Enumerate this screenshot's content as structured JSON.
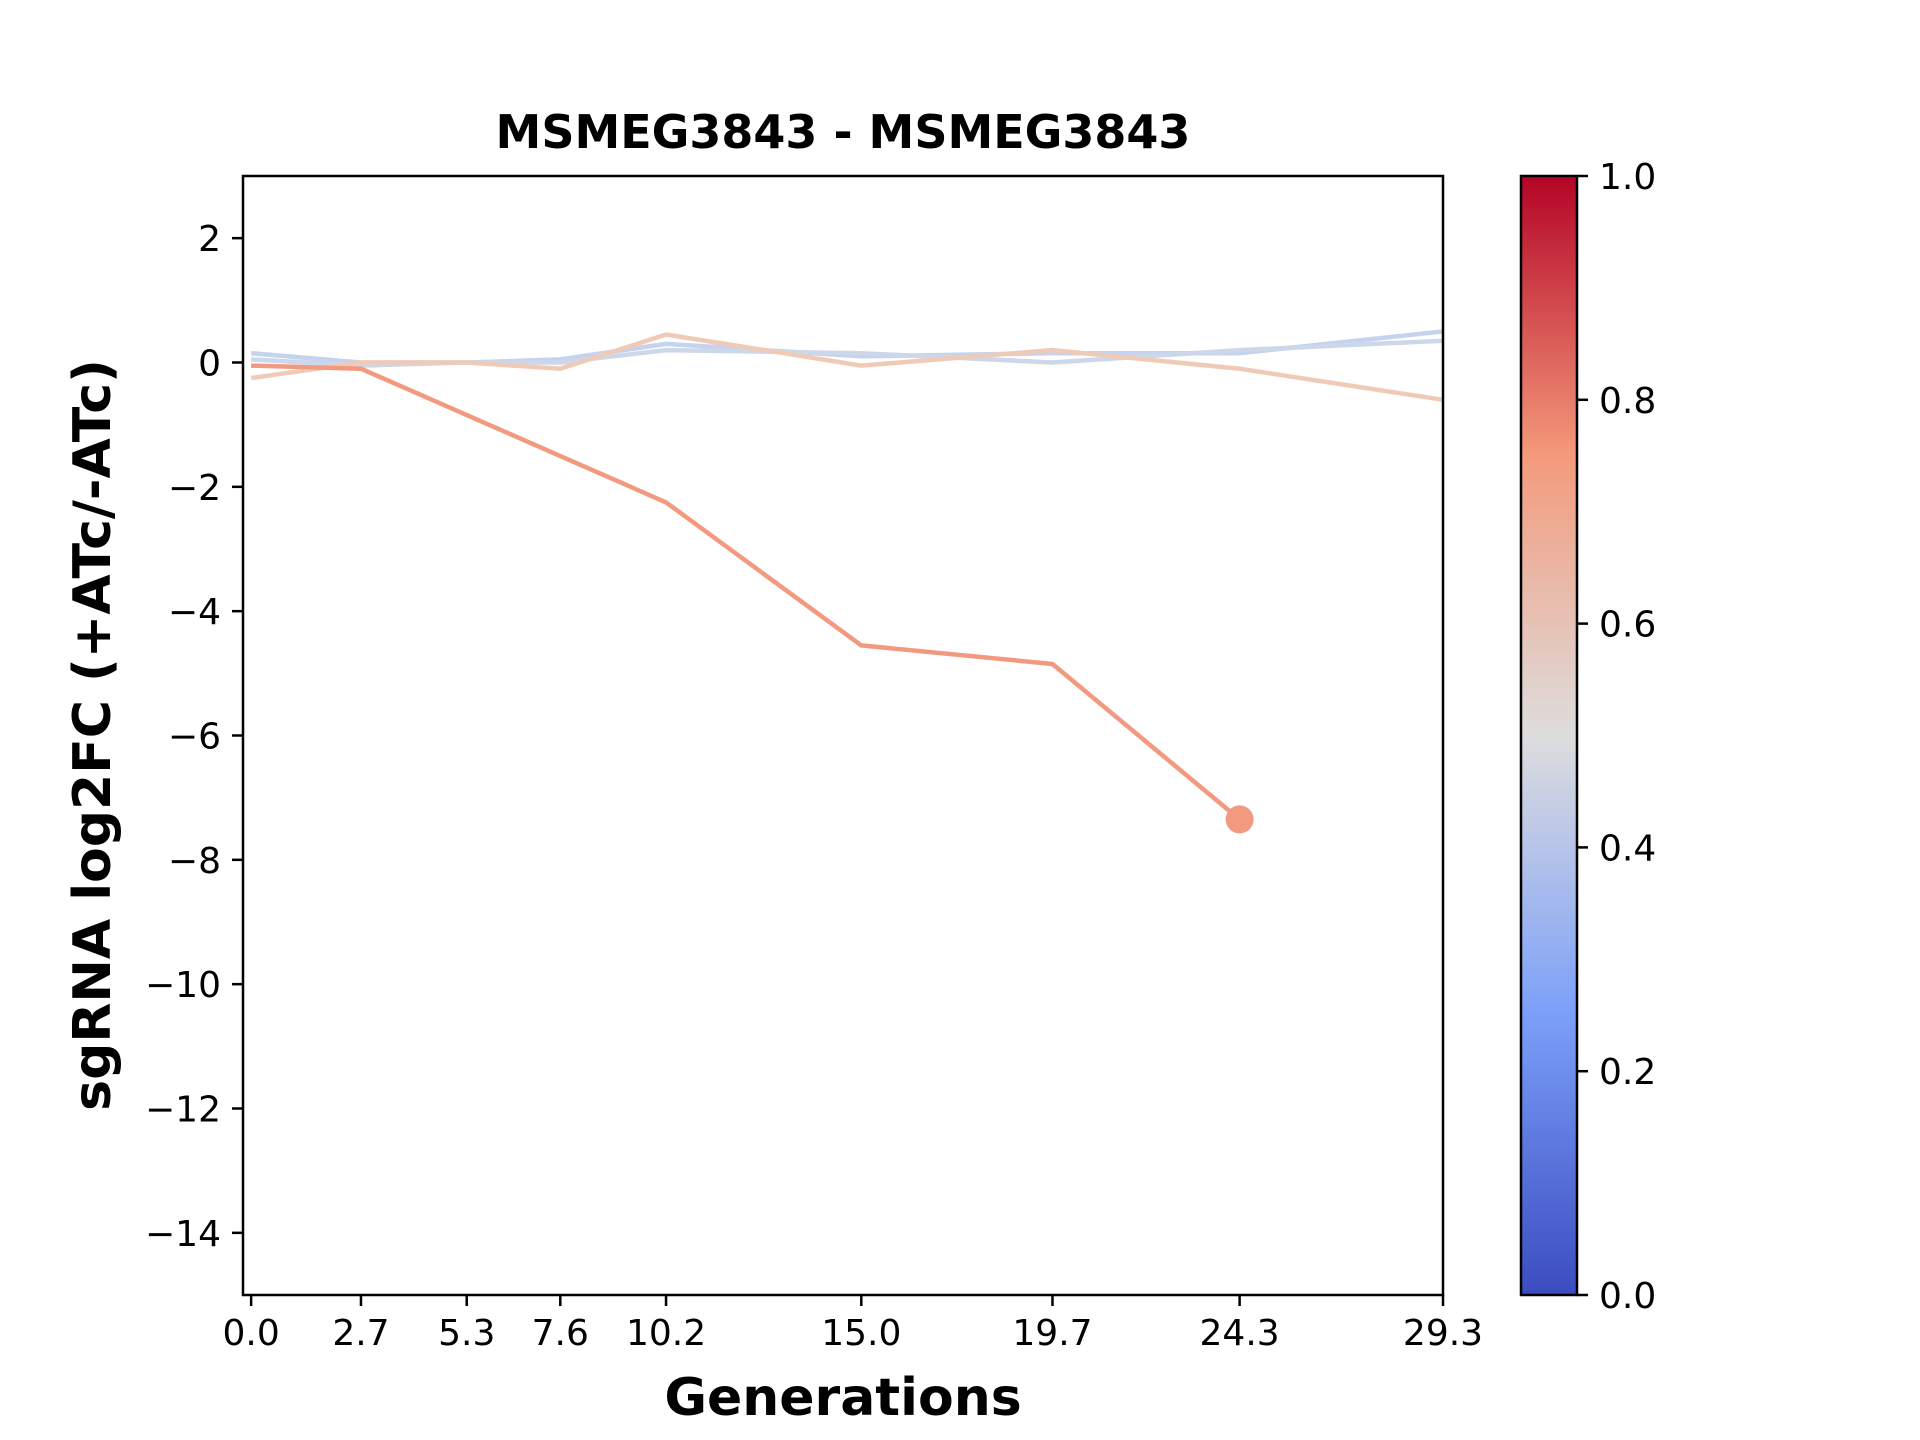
{
  "chart_data": {
    "type": "line",
    "title": "MSMEG3843 - MSMEG3843",
    "xlabel": "Generations",
    "ylabel": "sgRNA log2FC (+ATc/-ATc)",
    "xlim": [
      -0.2,
      29.3
    ],
    "ylim": [
      -15,
      3
    ],
    "x_ticks": [
      0.0,
      2.7,
      5.3,
      7.6,
      10.2,
      15.0,
      19.7,
      24.3,
      29.3
    ],
    "x_tick_labels": [
      "0.0",
      "2.7",
      "5.3",
      "7.6",
      "10.2",
      "15.0",
      "19.7",
      "24.3",
      "29.3"
    ],
    "y_ticks": [
      2,
      0,
      -2,
      -4,
      -6,
      -8,
      -10,
      -12,
      -14
    ],
    "y_tick_labels": [
      "2",
      "0",
      "−2",
      "−4",
      "−6",
      "−8",
      "−10",
      "−12",
      "−14"
    ],
    "grid": false,
    "series": [
      {
        "color_value": 0.42,
        "color": "#c5d3ef",
        "x": [
          0.0,
          2.7,
          5.3,
          7.6,
          10.2,
          15.0,
          19.7,
          24.3,
          29.3
        ],
        "y": [
          0.15,
          0.0,
          0.0,
          0.05,
          0.3,
          0.1,
          0.15,
          0.15,
          0.5
        ]
      },
      {
        "color_value": 0.45,
        "color": "#cdd7ea",
        "x": [
          0.0,
          2.7,
          5.3,
          7.6,
          10.2,
          15.0,
          19.7,
          24.3,
          29.3
        ],
        "y": [
          0.05,
          -0.05,
          0.0,
          0.0,
          0.2,
          0.15,
          0.0,
          0.2,
          0.35
        ]
      },
      {
        "color_value": 0.62,
        "color": "#efcbb7",
        "x": [
          0.0,
          2.7,
          5.3,
          7.6,
          10.2,
          15.0,
          19.7,
          24.3,
          29.3
        ],
        "y": [
          -0.25,
          0.0,
          0.0,
          -0.1,
          0.45,
          -0.05,
          0.2,
          -0.1,
          -0.6
        ]
      },
      {
        "color_value": 0.75,
        "color": "#f29a80",
        "x": [
          0.0,
          2.7,
          10.2,
          15.0,
          19.7,
          24.3
        ],
        "y": [
          -0.05,
          -0.1,
          -2.25,
          -4.55,
          -4.85,
          -7.35
        ],
        "end_marker": true
      }
    ],
    "colorbar": {
      "colormap": "coolwarm",
      "range": [
        0.0,
        1.0
      ],
      "ticks": [
        0.0,
        0.2,
        0.4,
        0.6,
        0.8,
        1.0
      ],
      "tick_labels": [
        "0.0",
        "0.2",
        "0.4",
        "0.6",
        "0.8",
        "1.0"
      ],
      "stops": [
        {
          "v": 0.0,
          "color": "#3b4cc0"
        },
        {
          "v": 0.25,
          "color": "#7b9ff9"
        },
        {
          "v": 0.5,
          "color": "#dddddd"
        },
        {
          "v": 0.75,
          "color": "#f49a7b"
        },
        {
          "v": 1.0,
          "color": "#b40426"
        }
      ]
    }
  }
}
